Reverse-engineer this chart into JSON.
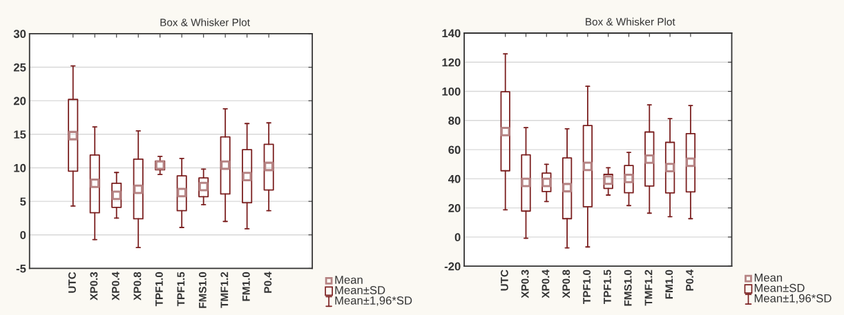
{
  "chart_data": [
    {
      "type": "box",
      "title": "Box & Whisker Plot",
      "categories": [
        "UTC",
        "XP0.3",
        "XP0.4",
        "XP0.8",
        "TPF1.0",
        "TPF1.5",
        "FMS1.0",
        "TMF1.2",
        "FM1.0",
        "P0.4"
      ],
      "color": "#7b1f1f",
      "boxes": [
        {
          "low": 4.3,
          "q1": 9.5,
          "median": 14.8,
          "q3": 20.2,
          "high": 25.2
        },
        {
          "low": -0.7,
          "q1": 3.3,
          "median": 7.7,
          "q3": 11.9,
          "high": 16.1
        },
        {
          "low": 2.5,
          "q1": 4.1,
          "median": 5.9,
          "q3": 7.7,
          "high": 9.3
        },
        {
          "low": -1.9,
          "q1": 2.4,
          "median": 6.8,
          "q3": 11.3,
          "high": 15.5
        },
        {
          "low": 9.0,
          "q1": 9.7,
          "median": 10.4,
          "q3": 11.0,
          "high": 11.7
        },
        {
          "low": 1.1,
          "q1": 3.6,
          "median": 6.3,
          "q3": 8.8,
          "high": 11.4
        },
        {
          "low": 4.5,
          "q1": 5.7,
          "median": 7.2,
          "q3": 8.5,
          "high": 9.8
        },
        {
          "low": 2.0,
          "q1": 6.1,
          "median": 10.4,
          "q3": 14.6,
          "high": 18.8
        },
        {
          "low": 0.9,
          "q1": 4.8,
          "median": 8.7,
          "q3": 12.7,
          "high": 16.6
        },
        {
          "low": 3.6,
          "q1": 6.7,
          "median": 10.2,
          "q3": 13.5,
          "high": 16.7
        }
      ],
      "ylim": [
        -5,
        30
      ],
      "yticks": [
        -5,
        0,
        5,
        10,
        15,
        20,
        25,
        30
      ],
      "grid": "y",
      "annotations": [
        "Mean",
        "Mean±SD",
        "Mean±1,96*SD"
      ]
    },
    {
      "type": "box",
      "title": "Box & Whisker Plot",
      "categories": [
        "UTC",
        "XP0.3",
        "XP0.4",
        "XP0.8",
        "TPF1.0",
        "TPF1.5",
        "FMS1.0",
        "TMF1.2",
        "FM1.0",
        "P0.4"
      ],
      "color": "#7b1f1f",
      "boxes": [
        {
          "low": 18.7,
          "q1": 45.5,
          "median": 72.4,
          "q3": 99.7,
          "high": 125.7
        },
        {
          "low": -0.8,
          "q1": 17.8,
          "median": 37.5,
          "q3": 56.4,
          "high": 75.1
        },
        {
          "low": 24.4,
          "q1": 31.2,
          "median": 37.5,
          "q3": 43.9,
          "high": 49.9
        },
        {
          "low": -7.4,
          "q1": 12.6,
          "median": 33.9,
          "q3": 54.3,
          "high": 74.3
        },
        {
          "low": -6.8,
          "q1": 20.8,
          "median": 48.5,
          "q3": 76.5,
          "high": 103.5
        },
        {
          "low": 28.8,
          "q1": 33.4,
          "median": 39.0,
          "q3": 43.0,
          "high": 47.6
        },
        {
          "low": 21.6,
          "q1": 30.4,
          "median": 40.2,
          "q3": 49.1,
          "high": 58.1
        },
        {
          "low": 16.4,
          "q1": 35.0,
          "median": 53.5,
          "q3": 72.1,
          "high": 90.7
        },
        {
          "low": 14.0,
          "q1": 30.3,
          "median": 47.7,
          "q3": 65.0,
          "high": 81.3
        },
        {
          "low": 12.6,
          "q1": 31.0,
          "median": 51.3,
          "q3": 71.0,
          "high": 90.3
        }
      ],
      "ylim": [
        -20,
        140
      ],
      "yticks": [
        -20,
        0,
        20,
        40,
        60,
        80,
        100,
        120,
        140
      ],
      "grid": "y",
      "annotations": [
        "Mean",
        "Mean±SD",
        "Mean±1,96*SD"
      ]
    }
  ]
}
